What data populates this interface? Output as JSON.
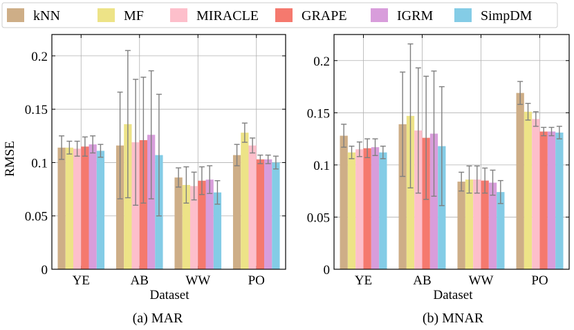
{
  "legend": {
    "items": [
      {
        "name": "kNN",
        "color": "#CEAE87"
      },
      {
        "name": "MF",
        "color": "#EDE387"
      },
      {
        "name": "MIRACLE",
        "color": "#FDBFCB"
      },
      {
        "name": "GRAPE",
        "color": "#F5796E"
      },
      {
        "name": "IGRM",
        "color": "#D89DDB"
      },
      {
        "name": "SimpDM",
        "color": "#84CCE6"
      }
    ]
  },
  "error_bar_color": "#7f7f7f",
  "chart_data": [
    {
      "type": "bar",
      "caption": "(a) MAR",
      "xlabel": "Dataset",
      "ylabel": "RMSE",
      "ylim": [
        0,
        0.22
      ],
      "yticks": [
        0,
        0.05,
        0.1,
        0.15,
        0.2
      ],
      "ytick_labels": [
        "0",
        "0.05",
        "0.1",
        "0.15",
        "0.2"
      ],
      "grid": true,
      "legend_position": "top",
      "categories": [
        "YE",
        "AB",
        "WW",
        "PO"
      ],
      "series": [
        {
          "name": "kNN",
          "values": [
            0.114,
            0.116,
            0.086,
            0.107
          ],
          "errors": [
            0.011,
            0.05,
            0.009,
            0.01
          ]
        },
        {
          "name": "MF",
          "values": [
            0.114,
            0.136,
            0.079,
            0.128
          ],
          "errors": [
            0.006,
            0.069,
            0.017,
            0.009
          ]
        },
        {
          "name": "MIRACLE",
          "values": [
            0.113,
            0.119,
            0.078,
            0.116
          ],
          "errors": [
            0.007,
            0.059,
            0.013,
            0.007
          ]
        },
        {
          "name": "GRAPE",
          "values": [
            0.115,
            0.121,
            0.083,
            0.103
          ],
          "errors": [
            0.009,
            0.059,
            0.013,
            0.004
          ]
        },
        {
          "name": "IGRM",
          "values": [
            0.117,
            0.126,
            0.084,
            0.103
          ],
          "errors": [
            0.008,
            0.06,
            0.013,
            0.004
          ]
        },
        {
          "name": "SimpDM",
          "values": [
            0.111,
            0.107,
            0.072,
            0.1
          ],
          "errors": [
            0.006,
            0.057,
            0.011,
            0.006
          ]
        }
      ]
    },
    {
      "type": "bar",
      "caption": "(b) MNAR",
      "xlabel": "Dataset",
      "ylabel": "",
      "ylim": [
        0,
        0.225
      ],
      "yticks": [
        0,
        0.05,
        0.1,
        0.15,
        0.2
      ],
      "ytick_labels": [
        "0",
        "0.05",
        "0.1",
        "0.15",
        "0.2"
      ],
      "grid": true,
      "categories": [
        "YE",
        "AB",
        "WW",
        "PO"
      ],
      "series": [
        {
          "name": "kNN",
          "values": [
            0.128,
            0.139,
            0.084,
            0.169
          ],
          "errors": [
            0.011,
            0.05,
            0.009,
            0.011
          ]
        },
        {
          "name": "MF",
          "values": [
            0.112,
            0.147,
            0.086,
            0.151
          ],
          "errors": [
            0.006,
            0.069,
            0.013,
            0.008
          ]
        },
        {
          "name": "MIRACLE",
          "values": [
            0.115,
            0.133,
            0.086,
            0.144
          ],
          "errors": [
            0.007,
            0.06,
            0.013,
            0.007
          ]
        },
        {
          "name": "GRAPE",
          "values": [
            0.116,
            0.126,
            0.085,
            0.132
          ],
          "errors": [
            0.009,
            0.059,
            0.012,
            0.004
          ]
        },
        {
          "name": "IGRM",
          "values": [
            0.117,
            0.13,
            0.083,
            0.132
          ],
          "errors": [
            0.008,
            0.06,
            0.012,
            0.004
          ]
        },
        {
          "name": "SimpDM",
          "values": [
            0.112,
            0.118,
            0.074,
            0.131
          ],
          "errors": [
            0.006,
            0.057,
            0.011,
            0.006
          ]
        }
      ]
    }
  ]
}
